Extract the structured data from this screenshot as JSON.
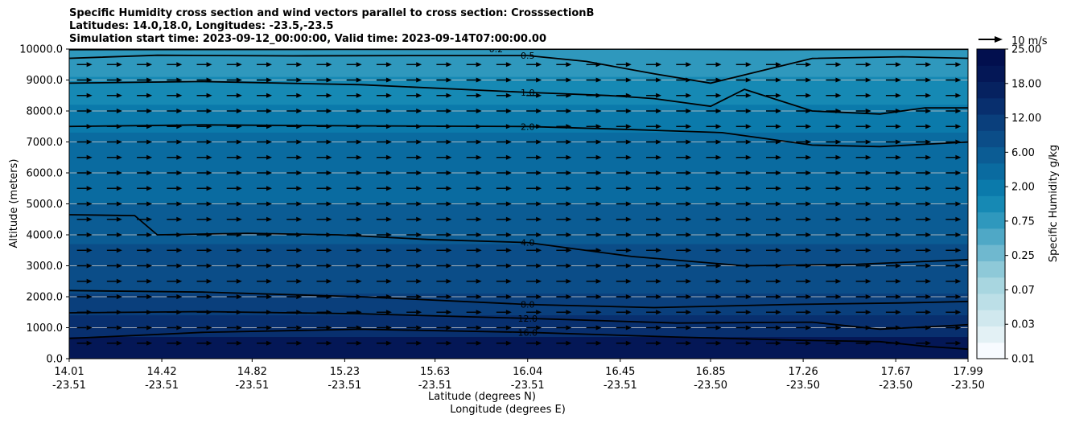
{
  "title_lines": [
    "Specific Humidity cross section and wind vectors parallel to cross section: CrosssectionB",
    "Latitudes: 14.0,18.0, Longitudes: -23.5,-23.5",
    "Simulation start time: 2023-09-12_00:00:00, Valid time: 2023-09-14T07:00:00.00"
  ],
  "chart_data": {
    "type": "heatmap",
    "title": "Specific Humidity cross section and wind vectors parallel to cross section: CrosssectionB",
    "ylabel": "Altitude (meters)",
    "xlabel_lines": [
      "Latitude (degrees N)",
      "Longitude (degrees E)"
    ],
    "ylim": [
      0,
      10000
    ],
    "y_ticks": [
      "0.0",
      "1000.0",
      "2000.0",
      "3000.0",
      "4000.0",
      "5000.0",
      "6000.0",
      "7000.0",
      "8000.0",
      "9000.0",
      "10000.0"
    ],
    "x_ticks": [
      {
        "lat": "14.01",
        "lon": "-23.51"
      },
      {
        "lat": "14.42",
        "lon": "-23.51"
      },
      {
        "lat": "14.82",
        "lon": "-23.51"
      },
      {
        "lat": "15.23",
        "lon": "-23.51"
      },
      {
        "lat": "15.63",
        "lon": "-23.51"
      },
      {
        "lat": "16.04",
        "lon": "-23.51"
      },
      {
        "lat": "16.45",
        "lon": "-23.51"
      },
      {
        "lat": "16.85",
        "lon": "-23.50"
      },
      {
        "lat": "17.26",
        "lon": "-23.50"
      },
      {
        "lat": "17.67",
        "lon": "-23.50"
      },
      {
        "lat": "17.99",
        "lon": "-23.50"
      }
    ],
    "grid": "horizontal",
    "colorbar": {
      "label": "Specific Humidity g/kg",
      "tick_labels": [
        "0.01",
        "0.03",
        "0.07",
        "0.25",
        "0.75",
        "2.00",
        "6.00",
        "12.00",
        "18.00",
        "25.00"
      ],
      "colors": [
        "#f7fbff",
        "#e3f1f5",
        "#d0e8ee",
        "#bcdfe7",
        "#a8d6e0",
        "#8ec9d8",
        "#6fb8cf",
        "#4fa8c6",
        "#2f98bd",
        "#1689b4",
        "#0b7aab",
        "#0a6ba0",
        "#0b5c94",
        "#0b4d88",
        "#0a3f7c",
        "#082f6e",
        "#062260",
        "#041756",
        "#020f4e"
      ]
    },
    "filled_layers": [
      {
        "upper_alt": 10000,
        "color": "#2f98bd"
      },
      {
        "upper_alt": 9100,
        "color": "#1689b4"
      },
      {
        "upper_alt": 8200,
        "color": "#0b7aab"
      },
      {
        "upper_alt": 7300,
        "color": "#0a6ba0"
      },
      {
        "upper_alt": 5000,
        "color": "#0b5c94"
      },
      {
        "upper_alt": 3700,
        "color": "#0b4d88"
      },
      {
        "upper_alt": 2100,
        "color": "#0a3f7c"
      },
      {
        "upper_alt": 1400,
        "color": "#082f6e"
      },
      {
        "upper_alt": 700,
        "color": "#041756"
      }
    ],
    "contours": [
      {
        "level": "0.2",
        "points": [
          [
            14.0,
            9980
          ],
          [
            14.6,
            9985
          ],
          [
            15.2,
            9990
          ],
          [
            15.9,
            9995
          ],
          [
            16.5,
            10000
          ],
          [
            17.1,
            9980
          ],
          [
            17.6,
            9990
          ],
          [
            18.0,
            9995
          ]
        ]
      },
      {
        "level": "0.5",
        "points": [
          [
            14.0,
            9700
          ],
          [
            14.4,
            9800
          ],
          [
            15.0,
            9780
          ],
          [
            15.6,
            9790
          ],
          [
            16.04,
            9790
          ],
          [
            16.3,
            9600
          ],
          [
            16.6,
            9200
          ],
          [
            16.85,
            8900
          ],
          [
            17.3,
            9700
          ],
          [
            17.7,
            9750
          ],
          [
            18.0,
            9700
          ]
        ]
      },
      {
        "level": "1.0",
        "points": [
          [
            14.0,
            8900
          ],
          [
            14.6,
            8950
          ],
          [
            15.3,
            8850
          ],
          [
            16.04,
            8600
          ],
          [
            16.4,
            8500
          ],
          [
            16.6,
            8400
          ],
          [
            16.85,
            8150
          ],
          [
            17.0,
            8700
          ],
          [
            17.3,
            8000
          ],
          [
            17.6,
            7900
          ],
          [
            17.8,
            8100
          ],
          [
            18.0,
            8100
          ]
        ]
      },
      {
        "level": "2.0",
        "points": [
          [
            14.0,
            7500
          ],
          [
            14.6,
            7550
          ],
          [
            15.3,
            7520
          ],
          [
            16.04,
            7500
          ],
          [
            16.5,
            7400
          ],
          [
            16.9,
            7300
          ],
          [
            17.3,
            6900
          ],
          [
            17.6,
            6850
          ],
          [
            18.0,
            7000
          ]
        ]
      },
      {
        "level": "4.0",
        "points": [
          [
            14.0,
            4650
          ],
          [
            14.3,
            4620
          ],
          [
            14.4,
            4000
          ],
          [
            14.8,
            4050
          ],
          [
            15.2,
            4000
          ],
          [
            15.6,
            3850
          ],
          [
            16.04,
            3750
          ],
          [
            16.5,
            3300
          ],
          [
            17.0,
            3000
          ],
          [
            17.5,
            3050
          ],
          [
            18.0,
            3200
          ]
        ]
      },
      {
        "level": "8.0",
        "points": [
          [
            14.0,
            2200
          ],
          [
            14.6,
            2150
          ],
          [
            15.3,
            2000
          ],
          [
            16.04,
            1750
          ],
          [
            16.6,
            1650
          ],
          [
            17.2,
            1750
          ],
          [
            17.7,
            1800
          ],
          [
            18.0,
            1850
          ]
        ]
      },
      {
        "level": "12.0",
        "points": [
          [
            14.0,
            1480
          ],
          [
            14.6,
            1520
          ],
          [
            15.3,
            1450
          ],
          [
            16.04,
            1300
          ],
          [
            16.7,
            1150
          ],
          [
            17.3,
            1180
          ],
          [
            17.6,
            950
          ],
          [
            18.0,
            1100
          ]
        ]
      },
      {
        "level": "16.0",
        "points": [
          [
            14.0,
            650
          ],
          [
            14.6,
            850
          ],
          [
            15.3,
            950
          ],
          [
            16.04,
            850
          ],
          [
            16.7,
            700
          ],
          [
            17.2,
            600
          ],
          [
            17.6,
            550
          ],
          [
            17.8,
            400
          ],
          [
            18.0,
            300
          ]
        ]
      }
    ],
    "wind_vector_key": "10 m/s",
    "wind_vector_rows_alt": [
      9500,
      9000,
      8500,
      8000,
      7500,
      7000,
      6500,
      6000,
      5500,
      5000,
      4500,
      4000,
      3500,
      3000,
      2500,
      2000,
      1500,
      1000,
      500
    ]
  }
}
